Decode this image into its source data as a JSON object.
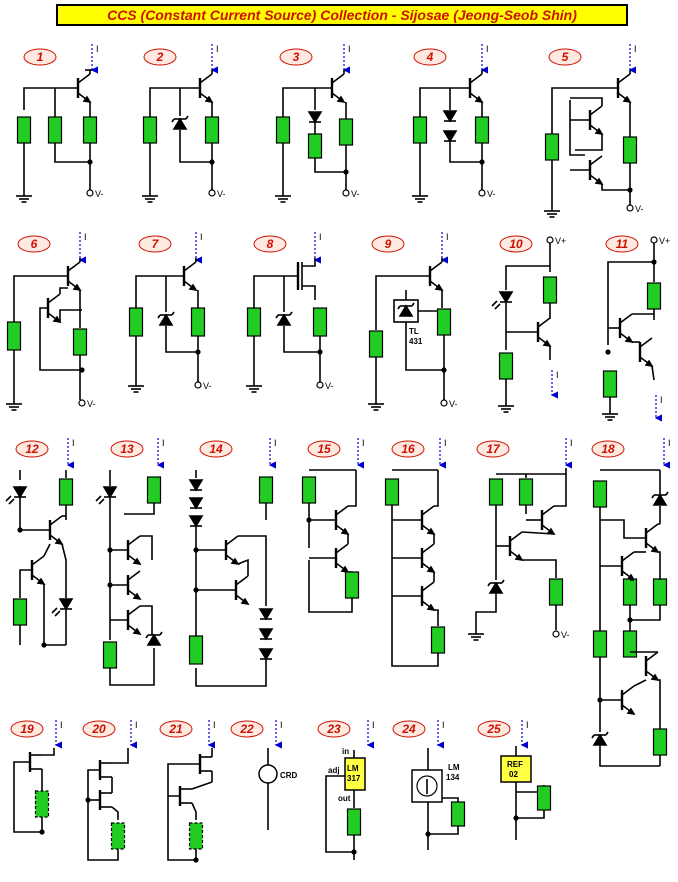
{
  "title": "CCS (Constant Current Source) Collection - Sijosae (Jeong-Seob Shin)",
  "circuit_numbers": [
    "1",
    "2",
    "3",
    "4",
    "5",
    "6",
    "7",
    "8",
    "9",
    "10",
    "11",
    "12",
    "13",
    "14",
    "15",
    "16",
    "17",
    "18",
    "19",
    "20",
    "21",
    "22",
    "23",
    "24",
    "25"
  ],
  "labels": {
    "v_minus": "V-",
    "v_plus": "V+",
    "current": "I",
    "tl431_a": "TL",
    "tl431_b": "431",
    "crd": "CRD",
    "lm317_in": "in",
    "lm317_adj": "adj",
    "lm317_out": "out",
    "lm317_a": "LM",
    "lm317_b": "317",
    "lm134_a": "LM",
    "lm134_b": "134",
    "ref_a": "REF",
    "ref_b": "02"
  },
  "colors": {
    "title_bg": "#ffff00",
    "title_text": "#cc1100",
    "resistor": "#22cc22",
    "label_fill": "#ffe9e0",
    "label_text": "#cc1100",
    "arrow": "#0000cc",
    "ic_fill": "#ffff44"
  }
}
